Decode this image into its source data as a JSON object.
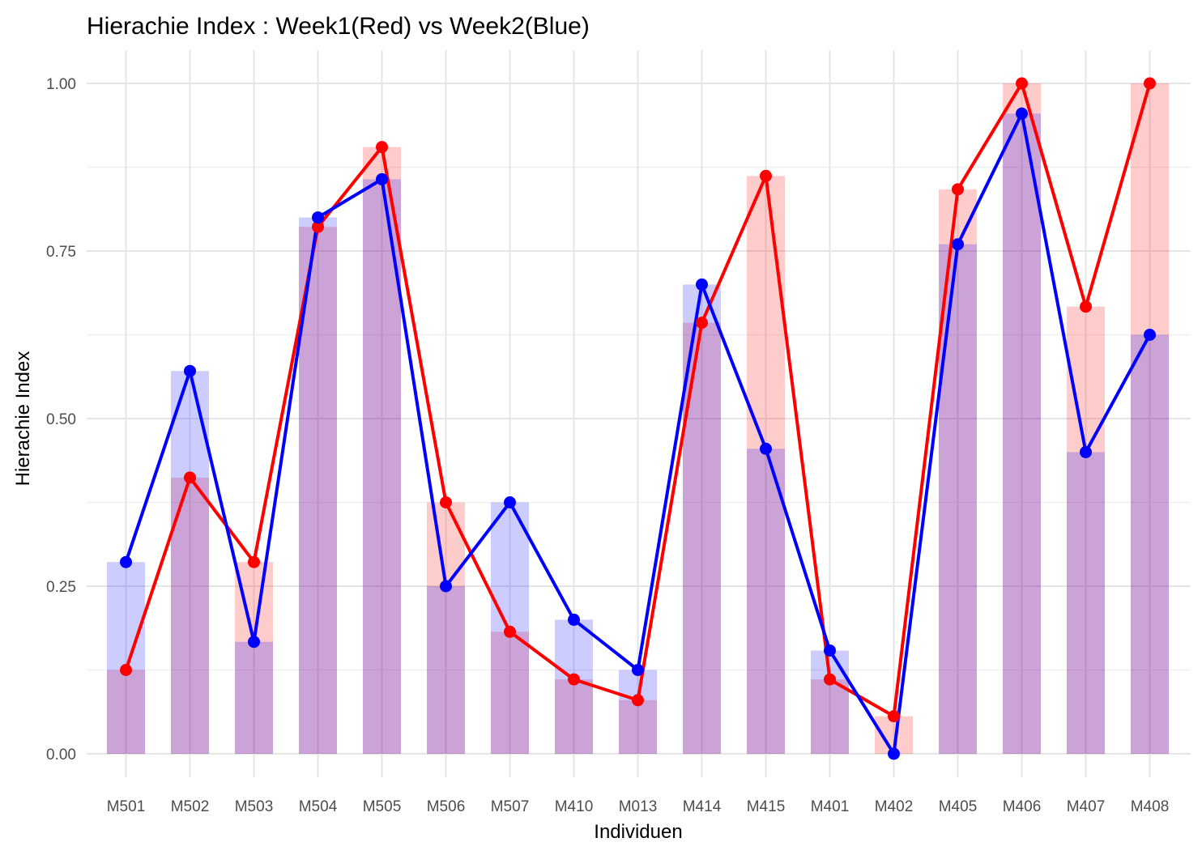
{
  "chart_data": {
    "type": "bar",
    "title": "Hierachie Index : Week1(Red) vs Week2(Blue)",
    "xlabel": "Individuen",
    "ylabel": "Hierachie Index",
    "ylim": [
      0,
      1
    ],
    "yticks": [
      "0.00",
      "0.25",
      "0.50",
      "0.75",
      "1.00"
    ],
    "grid": true,
    "categories": [
      "M501",
      "M502",
      "M503",
      "M504",
      "M505",
      "M506",
      "M507",
      "M410",
      "M013",
      "M414",
      "M415",
      "M401",
      "M402",
      "M405",
      "M406",
      "M407",
      "M408"
    ],
    "series": [
      {
        "color": "#ff0000",
        "bar_color": "#ff0000",
        "values": [
          0.125,
          0.412,
          0.286,
          0.786,
          0.905,
          0.375,
          0.182,
          0.111,
          0.08,
          0.643,
          0.862,
          0.111,
          0.056,
          0.842,
          1.0,
          0.667,
          1.0
        ]
      },
      {
        "color": "#0000ff",
        "bar_color": "#0000ff",
        "values": [
          0.286,
          0.571,
          0.167,
          0.8,
          0.857,
          0.25,
          0.375,
          0.2,
          0.125,
          0.7,
          0.455,
          0.154,
          0.0,
          0.76,
          0.955,
          0.45,
          0.625
        ]
      }
    ]
  }
}
